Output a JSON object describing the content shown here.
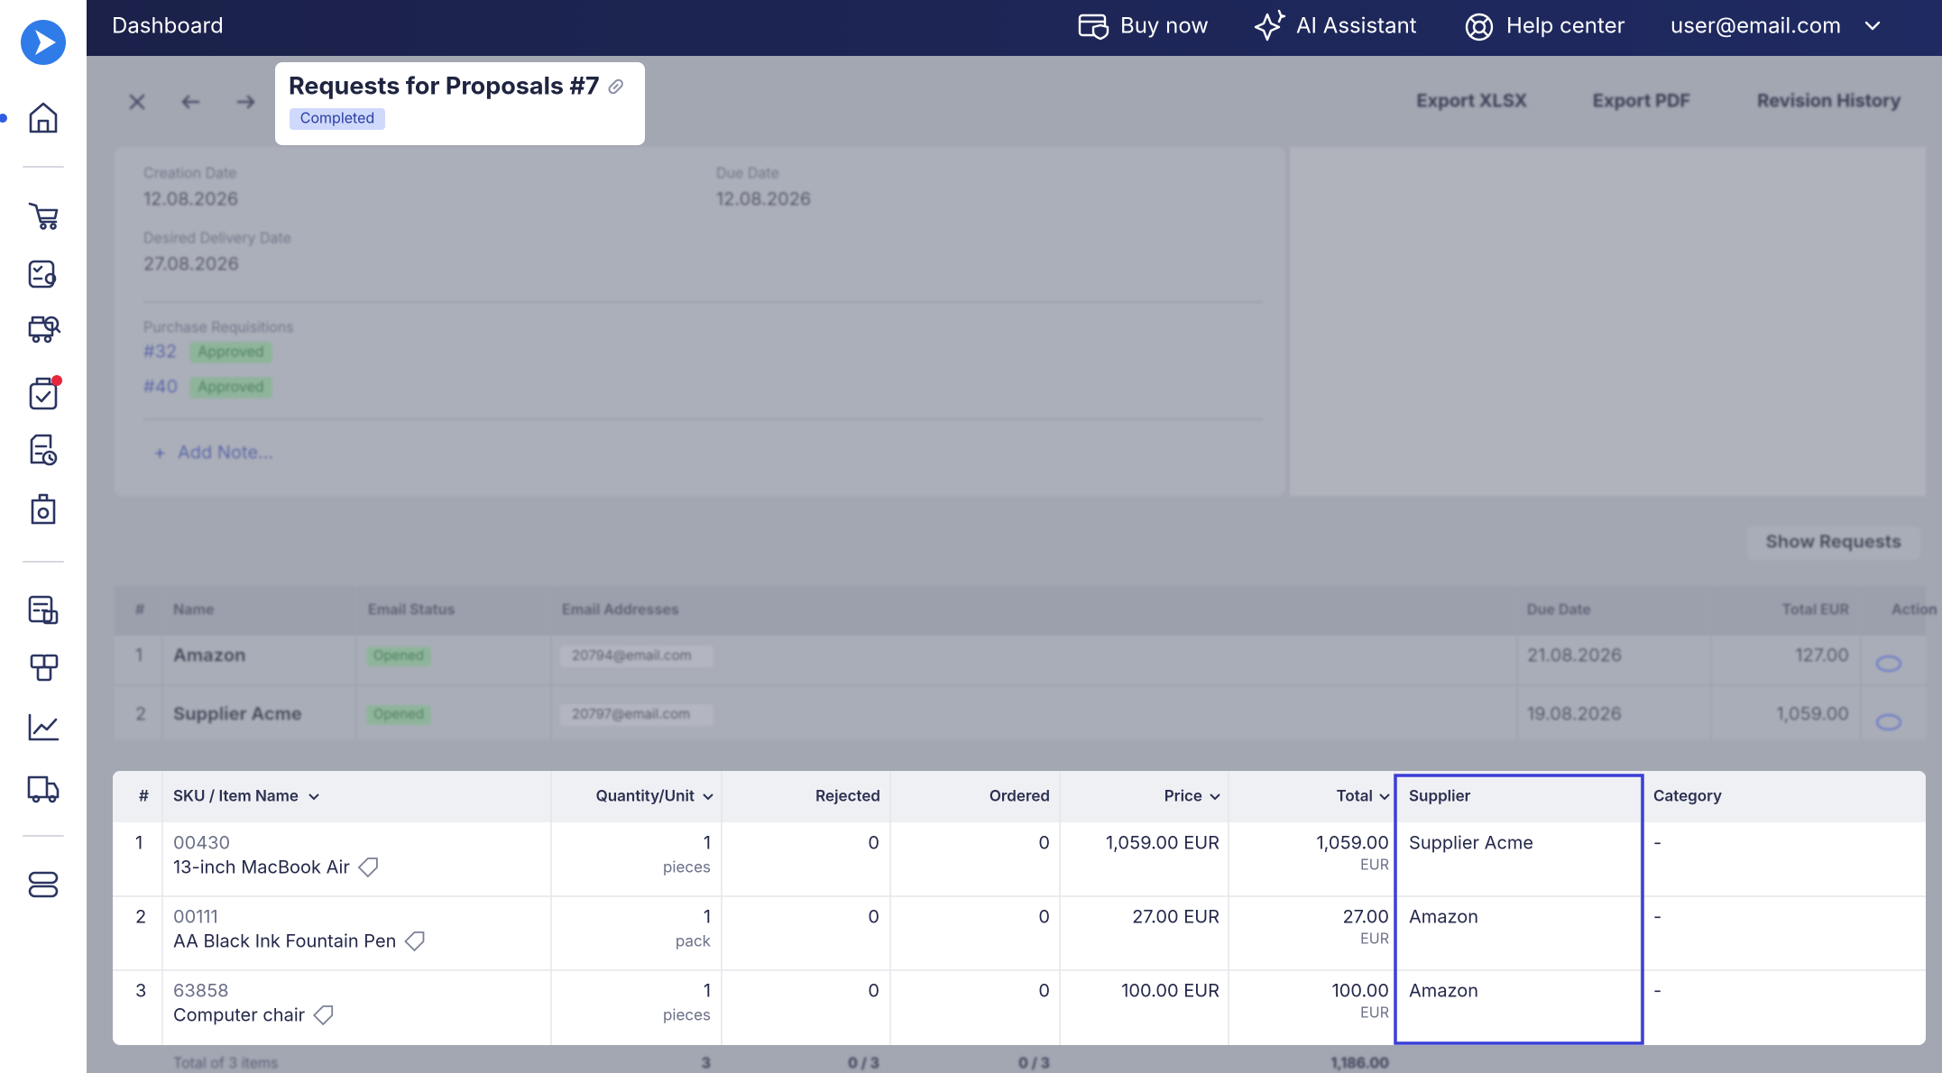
{
  "header": {
    "title": "Dashboard",
    "buy_now": "Buy now",
    "ai_assistant": "AI Assistant",
    "help_center": "Help center",
    "user": "user@email.com"
  },
  "toolbar": {
    "export_xlsx": "Export XLSX",
    "export_pdf": "Export PDF",
    "revision_history": "Revision History"
  },
  "document": {
    "title": "Requests for Proposals #7",
    "status": "Completed"
  },
  "details": {
    "creation_date_label": "Creation Date",
    "creation_date": "12.08.2026",
    "due_date_label": "Due Date",
    "due_date": "12.08.2026",
    "desired_delivery_label": "Desired Delivery Date",
    "desired_delivery": "27.08.2026",
    "purchase_requisitions_label": "Purchase Requisitions",
    "requisitions": [
      {
        "id": "#32",
        "status": "Approved"
      },
      {
        "id": "#40",
        "status": "Approved"
      }
    ],
    "add_note": "Add Note..."
  },
  "show_requests": "Show Requests",
  "suppliers_table": {
    "headers": [
      "#",
      "Name",
      "Email Status",
      "Email Addresses",
      "Due Date",
      "Total EUR",
      "Action"
    ],
    "rows": [
      [
        "1",
        "Amazon",
        "Opened",
        "20794@email.com",
        "21.08.2026",
        "127.00"
      ],
      [
        "2",
        "Supplier Acme",
        "Opened",
        "20797@email.com",
        "19.08.2026",
        "1,059.00"
      ]
    ]
  },
  "items_table": {
    "headers": [
      "#",
      "SKU / Item Name",
      "Quantity/Unit",
      "Rejected",
      "Ordered",
      "Price",
      "Total",
      "Supplier",
      "Category"
    ],
    "rows": [
      {
        "number": "1",
        "sku": "00430",
        "name": "13-inch MacBook Air",
        "quantity": "1",
        "unit": "pieces",
        "rejected": "0",
        "ordered": "0",
        "price": "1,059.00 EUR",
        "total": "1,059.00",
        "currency": "EUR",
        "supplier": "Supplier Acme",
        "category": "-"
      },
      {
        "number": "2",
        "sku": "00111",
        "name": "AA Black Ink Fountain Pen",
        "quantity": "1",
        "unit": "pack",
        "rejected": "0",
        "ordered": "0",
        "price": "27.00 EUR",
        "total": "27.00",
        "currency": "EUR",
        "supplier": "Amazon",
        "category": "-"
      },
      {
        "number": "3",
        "sku": "63858",
        "name": "Computer chair",
        "quantity": "1",
        "unit": "pieces",
        "rejected": "0",
        "ordered": "0",
        "price": "100.00 EUR",
        "total": "100.00",
        "currency": "EUR",
        "supplier": "Amazon",
        "category": "-"
      }
    ],
    "footer": {
      "label": "Total of 3 items",
      "quantity": "3",
      "rejected": "0 / 3",
      "ordered": "0 / 3",
      "total": "1,186.00"
    }
  }
}
